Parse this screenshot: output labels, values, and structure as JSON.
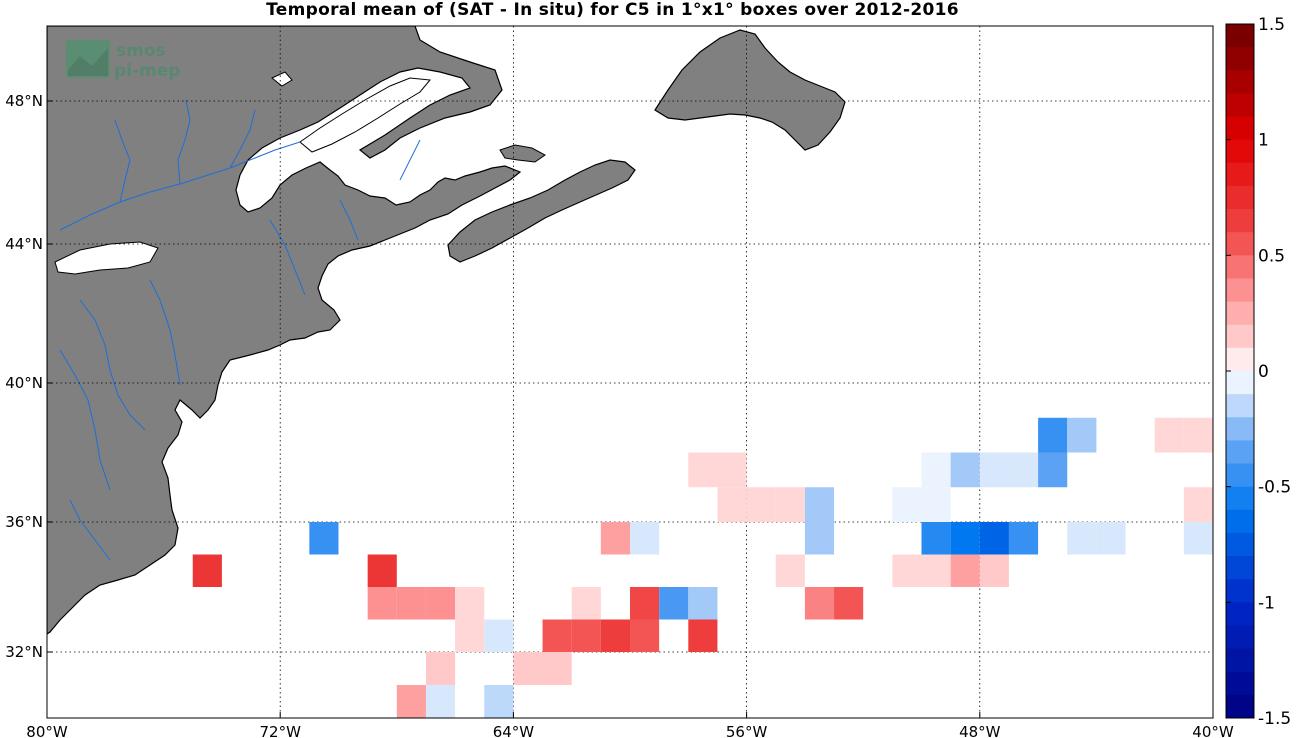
{
  "title": "Temporal mean of (SAT - In situ) for C5 in 1°x1° boxes over 2012-2016",
  "logo": {
    "line1": "smos",
    "line2": "pi-mep"
  },
  "colors": {
    "land": "#808080",
    "coast": "#000000",
    "river": "#1e6fd6",
    "grid": "#000000"
  },
  "chart_data": {
    "type": "heatmap",
    "title": "Temporal mean of (SAT - In situ) for C5 in 1°x1° boxes over 2012-2016",
    "xlim": [
      -80,
      -40
    ],
    "ylim": [
      30,
      50
    ],
    "x_ticks": [
      {
        "v": -80,
        "label": "80°W"
      },
      {
        "v": -72,
        "label": "72°W"
      },
      {
        "v": -64,
        "label": "64°W"
      },
      {
        "v": -56,
        "label": "56°W"
      },
      {
        "v": -48,
        "label": "48°W"
      },
      {
        "v": -40,
        "label": "40°W"
      }
    ],
    "y_ticks": [
      {
        "v": 32,
        "label": "32°N"
      },
      {
        "v": 36,
        "label": "36°N"
      },
      {
        "v": 40,
        "label": "40°N"
      },
      {
        "v": 44,
        "label": "44°N"
      },
      {
        "v": 48,
        "label": "48°N"
      }
    ],
    "colorbar": {
      "min": -1.5,
      "max": 1.5,
      "ticks": [
        {
          "v": 1.5,
          "label": "1.5"
        },
        {
          "v": 1,
          "label": "1"
        },
        {
          "v": 0.5,
          "label": "0.5"
        },
        {
          "v": 0,
          "label": "0"
        },
        {
          "v": -0.5,
          "label": "-0.5"
        },
        {
          "v": -1,
          "label": "-1"
        },
        {
          "v": -1.5,
          "label": "-1.5"
        }
      ]
    },
    "cells": [
      {
        "lon": -57.5,
        "lat": 37.5,
        "value": 0.1
      },
      {
        "lon": -56.5,
        "lat": 37.5,
        "value": 0.1
      },
      {
        "lon": -56.5,
        "lat": 36.5,
        "value": 0.1
      },
      {
        "lon": -55.5,
        "lat": 36.5,
        "value": 0.1
      },
      {
        "lon": -54.5,
        "lat": 36.5,
        "value": 0.1
      },
      {
        "lon": -70.5,
        "lat": 35.5,
        "value": -0.45
      },
      {
        "lon": -60.5,
        "lat": 35.5,
        "value": 0.3
      },
      {
        "lon": -59.5,
        "lat": 35.5,
        "value": -0.1
      },
      {
        "lon": -74.5,
        "lat": 34.5,
        "value": 0.7
      },
      {
        "lon": -68.5,
        "lat": 34.5,
        "value": 0.7
      },
      {
        "lon": -54.5,
        "lat": 34.5,
        "value": 0.1
      },
      {
        "lon": -68.5,
        "lat": 33.5,
        "value": 0.35
      },
      {
        "lon": -67.5,
        "lat": 33.5,
        "value": 0.35
      },
      {
        "lon": -66.5,
        "lat": 33.5,
        "value": 0.35
      },
      {
        "lon": -65.5,
        "lat": 33.5,
        "value": 0.1
      },
      {
        "lon": -61.5,
        "lat": 33.5,
        "value": 0.1
      },
      {
        "lon": -59.5,
        "lat": 33.5,
        "value": 0.6
      },
      {
        "lon": -58.5,
        "lat": 33.5,
        "value": -0.4
      },
      {
        "lon": -57.5,
        "lat": 33.5,
        "value": -0.2
      },
      {
        "lon": -65.5,
        "lat": 32.5,
        "value": 0.1
      },
      {
        "lon": -64.5,
        "lat": 32.5,
        "value": -0.1
      },
      {
        "lon": -62.5,
        "lat": 32.5,
        "value": 0.55
      },
      {
        "lon": -61.5,
        "lat": 32.5,
        "value": 0.55
      },
      {
        "lon": -60.5,
        "lat": 32.5,
        "value": 0.65
      },
      {
        "lon": -59.5,
        "lat": 32.5,
        "value": 0.55
      },
      {
        "lon": -57.5,
        "lat": 32.5,
        "value": 0.65
      },
      {
        "lon": -66.5,
        "lat": 31.5,
        "value": 0.15
      },
      {
        "lon": -63.5,
        "lat": 31.5,
        "value": 0.15
      },
      {
        "lon": -62.5,
        "lat": 31.5,
        "value": 0.15
      },
      {
        "lon": -67.5,
        "lat": 30.5,
        "value": 0.3
      },
      {
        "lon": -66.5,
        "lat": 30.5,
        "value": -0.1
      },
      {
        "lon": -64.5,
        "lat": 30.5,
        "value": -0.15
      },
      {
        "lon": -45.5,
        "lat": 38.5,
        "value": -0.45
      },
      {
        "lon": -44.5,
        "lat": 38.5,
        "value": -0.2
      },
      {
        "lon": -41.5,
        "lat": 38.5,
        "value": 0.1
      },
      {
        "lon": -40.5,
        "lat": 38.5,
        "value": 0.1
      },
      {
        "lon": -49.5,
        "lat": 37.5,
        "value": -0.05
      },
      {
        "lon": -48.5,
        "lat": 37.5,
        "value": -0.2
      },
      {
        "lon": -47.5,
        "lat": 37.5,
        "value": -0.1
      },
      {
        "lon": -46.5,
        "lat": 37.5,
        "value": -0.1
      },
      {
        "lon": -45.5,
        "lat": 37.5,
        "value": -0.35
      },
      {
        "lon": -53.5,
        "lat": 36.5,
        "value": -0.2
      },
      {
        "lon": -50.5,
        "lat": 36.5,
        "value": -0.05
      },
      {
        "lon": -49.5,
        "lat": 36.5,
        "value": -0.05
      },
      {
        "lon": -40.5,
        "lat": 36.5,
        "value": 0.1
      },
      {
        "lon": -53.5,
        "lat": 35.5,
        "value": -0.2
      },
      {
        "lon": -49.5,
        "lat": 35.5,
        "value": -0.5
      },
      {
        "lon": -48.5,
        "lat": 35.5,
        "value": -0.6
      },
      {
        "lon": -47.5,
        "lat": 35.5,
        "value": -0.7
      },
      {
        "lon": -46.5,
        "lat": 35.5,
        "value": -0.45
      },
      {
        "lon": -44.5,
        "lat": 35.5,
        "value": -0.1
      },
      {
        "lon": -43.5,
        "lat": 35.5,
        "value": -0.1
      },
      {
        "lon": -40.5,
        "lat": 35.5,
        "value": -0.1
      },
      {
        "lon": -50.5,
        "lat": 34.5,
        "value": 0.1
      },
      {
        "lon": -49.5,
        "lat": 34.5,
        "value": 0.1
      },
      {
        "lon": -48.5,
        "lat": 34.5,
        "value": 0.3
      },
      {
        "lon": -47.5,
        "lat": 34.5,
        "value": 0.15
      },
      {
        "lon": -53.5,
        "lat": 33.5,
        "value": 0.4
      },
      {
        "lon": -52.5,
        "lat": 33.5,
        "value": 0.55
      }
    ]
  }
}
